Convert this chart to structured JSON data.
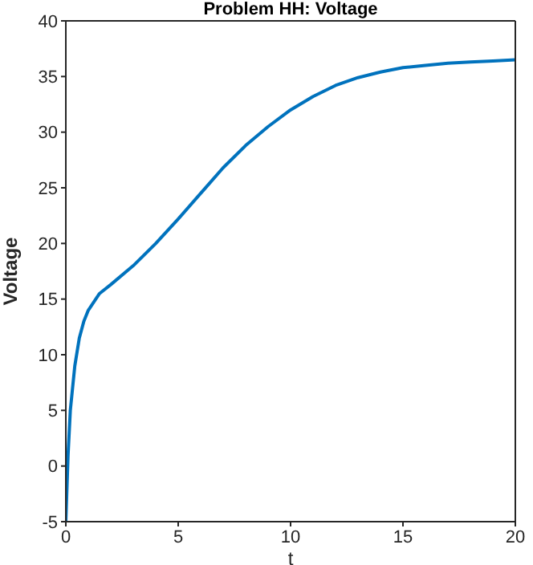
{
  "chart_data": {
    "type": "line",
    "title": "Problem HH: Voltage",
    "xlabel": "t",
    "ylabel": "Voltage",
    "x": [
      0,
      0.1,
      0.2,
      0.4,
      0.6,
      0.8,
      1,
      1.5,
      2,
      3,
      4,
      5,
      6,
      7,
      8,
      9,
      10,
      11,
      12,
      13,
      14,
      15,
      16,
      17,
      18,
      19,
      20
    ],
    "series": [
      {
        "color": "#0072bd",
        "values": [
          -5,
          1,
          5,
          9,
          11.5,
          13,
          14,
          15.5,
          16.3,
          18,
          20,
          22.2,
          24.5,
          26.8,
          28.8,
          30.5,
          32,
          33.2,
          34.2,
          34.9,
          35.4,
          35.8,
          36,
          36.2,
          36.3,
          36.4,
          36.5
        ]
      }
    ],
    "xlim": [
      0,
      20
    ],
    "xticks": [
      0,
      5,
      10,
      15,
      20
    ],
    "ylim": [
      -5,
      40
    ],
    "yticks": [
      -5,
      0,
      5,
      10,
      15,
      20,
      25,
      30,
      35,
      40
    ],
    "grid": false,
    "legend": false,
    "marker": "none",
    "line_style": "solid"
  }
}
